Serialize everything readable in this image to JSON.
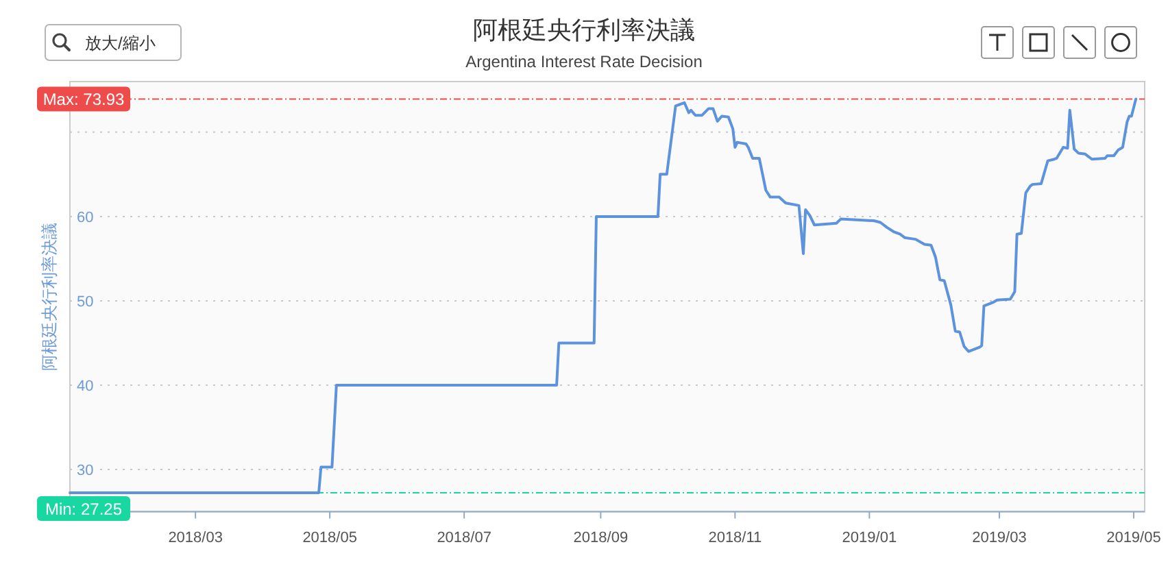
{
  "chart_data": {
    "type": "line",
    "title": "阿根廷央行利率決議",
    "subtitle": "Argentina Interest Rate Decision",
    "ylabel": "阿根廷央行利率決議",
    "annotations": [
      "放大/縮小"
    ],
    "x": [
      "2018-01-03",
      "2018-04-26",
      "2018-04-27",
      "2018-05-02",
      "2018-05-04",
      "2018-08-12",
      "2018-08-13",
      "2018-08-29",
      "2018-08-30",
      "2018-09-27",
      "2018-09-28",
      "2018-10-01",
      "2018-10-05",
      "2018-10-09",
      "2018-10-11",
      "2018-10-12",
      "2018-10-14",
      "2018-10-17",
      "2018-10-20",
      "2018-10-22",
      "2018-10-24",
      "2018-10-26",
      "2018-10-29",
      "2018-10-31",
      "2018-11-01",
      "2018-11-02",
      "2018-11-06",
      "2018-11-07",
      "2018-11-09",
      "2018-11-12",
      "2018-11-15",
      "2018-11-17",
      "2018-11-21",
      "2018-11-24",
      "2018-11-30",
      "2018-12-02",
      "2018-12-03",
      "2018-12-05",
      "2018-12-07",
      "2018-12-17",
      "2018-12-19",
      "2019-01-03",
      "2019-01-06",
      "2019-01-09",
      "2019-01-12",
      "2019-01-15",
      "2019-01-17",
      "2019-01-22",
      "2019-01-26",
      "2019-01-29",
      "2019-01-31",
      "2019-02-02",
      "2019-02-04",
      "2019-02-07",
      "2019-02-09",
      "2019-02-11",
      "2019-02-13",
      "2019-02-15",
      "2019-02-17",
      "2019-02-20",
      "2019-02-21",
      "2019-02-22",
      "2019-02-24",
      "2019-02-26",
      "2019-02-28",
      "2019-03-06",
      "2019-03-08",
      "2019-03-09",
      "2019-03-11",
      "2019-03-13",
      "2019-03-15",
      "2019-03-16",
      "2019-03-20",
      "2019-03-23",
      "2019-03-26",
      "2019-03-27",
      "2019-03-30",
      "2019-04-01",
      "2019-04-02",
      "2019-04-04",
      "2019-04-06",
      "2019-04-09",
      "2019-04-12",
      "2019-04-18",
      "2019-04-19",
      "2019-04-22",
      "2019-04-24",
      "2019-04-26",
      "2019-04-28",
      "2019-04-29",
      "2019-04-30",
      "2019-05-02"
    ],
    "series": [
      {
        "color": "#5d93dc",
        "values": [
          27.25,
          27.25,
          30.3,
          30.3,
          40,
          40,
          45,
          45,
          60,
          60,
          65,
          65,
          73.1,
          73.5,
          72.3,
          72.6,
          72,
          72,
          72.8,
          72.8,
          71.3,
          71.9,
          71.8,
          70.4,
          68.2,
          68.8,
          68.6,
          68.2,
          66.9,
          66.9,
          63.1,
          62.3,
          62.3,
          61.6,
          61.3,
          55.6,
          60.8,
          60.1,
          59,
          59.2,
          59.7,
          59.5,
          59.3,
          58.7,
          58.2,
          57.9,
          57.5,
          57.3,
          56.7,
          56.6,
          55.2,
          52.5,
          52.4,
          49.5,
          46.4,
          46.3,
          44.6,
          44,
          44.2,
          44.5,
          44.7,
          49.4,
          49.6,
          49.8,
          50.1,
          50.2,
          51.1,
          57.9,
          58,
          62.8,
          63.6,
          63.8,
          63.9,
          66.6,
          66.8,
          66.9,
          68.2,
          68.1,
          72.6,
          68,
          67.5,
          67.4,
          66.8,
          66.9,
          67.2,
          67.2,
          67.9,
          68.2,
          71.2,
          71.9,
          71.9,
          73.93
        ]
      }
    ],
    "xlim": [
      "2018-01-03",
      "2019-05-06"
    ],
    "xticks": [
      {
        "value": "2018-03",
        "label": "2018/03"
      },
      {
        "value": "2018-05",
        "label": "2018/05"
      },
      {
        "value": "2018-07",
        "label": "2018/07"
      },
      {
        "value": "2018-09",
        "label": "2018/09"
      },
      {
        "value": "2018-11",
        "label": "2018/11"
      },
      {
        "value": "2019-01",
        "label": "2019/01"
      },
      {
        "value": "2019-03",
        "label": "2019/03"
      },
      {
        "value": "2019-05",
        "label": "2019/05"
      }
    ],
    "ylim": [
      25,
      76
    ],
    "yticks": [
      30,
      40,
      50,
      60,
      {
        "value": 70,
        "label": null
      }
    ],
    "grid": "y",
    "ref_lines": [
      {
        "axis": "y",
        "value": 73.93,
        "label": "Max: 73.93",
        "color": "#ee4b4b",
        "line_style": "dashed"
      },
      {
        "axis": "y",
        "value": 27.25,
        "label": "Min: 27.25",
        "color": "#19d7a1",
        "line_style": "dashed"
      }
    ]
  }
}
